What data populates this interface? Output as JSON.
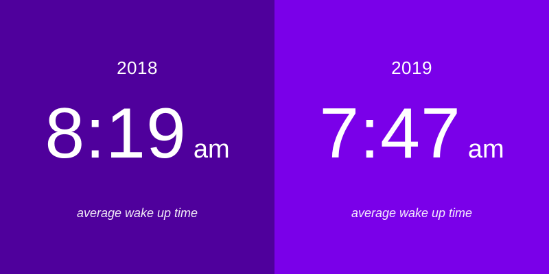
{
  "colors": {
    "left_background": "#4f009c",
    "right_background": "#7a00e9",
    "text": "#ffffff"
  },
  "panels": [
    {
      "year": "2018",
      "time": "8:19",
      "suffix": "am",
      "caption": "average wake up time"
    },
    {
      "year": "2019",
      "time": "7:47",
      "suffix": "am",
      "caption": "average wake up time"
    }
  ]
}
